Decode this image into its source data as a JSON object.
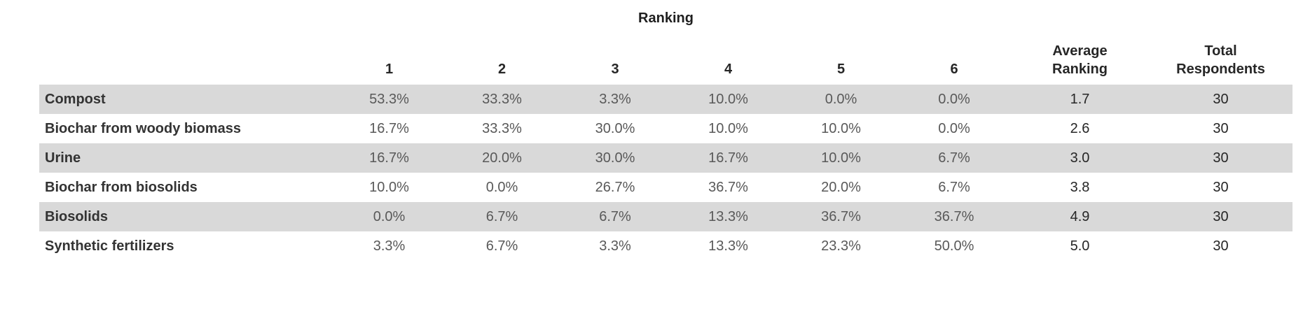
{
  "title": "Ranking",
  "header": {
    "ranks": [
      "1",
      "2",
      "3",
      "4",
      "5",
      "6"
    ],
    "average": "Average\nRanking",
    "total": "Total\nRespondents"
  },
  "rows": [
    {
      "label": "Compost",
      "pcts": [
        "53.3%",
        "33.3%",
        "3.3%",
        "10.0%",
        "0.0%",
        "0.0%"
      ],
      "avg": "1.7",
      "total": "30"
    },
    {
      "label": "Biochar from woody biomass",
      "pcts": [
        "16.7%",
        "33.3%",
        "30.0%",
        "10.0%",
        "10.0%",
        "0.0%"
      ],
      "avg": "2.6",
      "total": "30"
    },
    {
      "label": "Urine",
      "pcts": [
        "16.7%",
        "20.0%",
        "30.0%",
        "16.7%",
        "10.0%",
        "6.7%"
      ],
      "avg": "3.0",
      "total": "30"
    },
    {
      "label": "Biochar from biosolids",
      "pcts": [
        "10.0%",
        "0.0%",
        "26.7%",
        "36.7%",
        "20.0%",
        "6.7%"
      ],
      "avg": "3.8",
      "total": "30"
    },
    {
      "label": "Biosolids",
      "pcts": [
        "0.0%",
        "6.7%",
        "6.7%",
        "13.3%",
        "36.7%",
        "36.7%"
      ],
      "avg": "4.9",
      "total": "30"
    },
    {
      "label": "Synthetic fertilizers",
      "pcts": [
        "3.3%",
        "6.7%",
        "3.3%",
        "13.3%",
        "23.3%",
        "50.0%"
      ],
      "avg": "5.0",
      "total": "30"
    }
  ],
  "colors": {
    "stripe": "#d9d9d9",
    "value_text": "#595959",
    "heading_text": "#262626",
    "label_text": "#333333"
  },
  "chart_data": {
    "type": "table",
    "title": "Ranking",
    "columns": [
      "",
      "1",
      "2",
      "3",
      "4",
      "5",
      "6",
      "Average Ranking",
      "Total Respondents"
    ],
    "rows": [
      [
        "Compost",
        "53.3%",
        "33.3%",
        "3.3%",
        "10.0%",
        "0.0%",
        "0.0%",
        1.7,
        30
      ],
      [
        "Biochar from woody biomass",
        "16.7%",
        "33.3%",
        "30.0%",
        "10.0%",
        "10.0%",
        "0.0%",
        2.6,
        30
      ],
      [
        "Urine",
        "16.7%",
        "20.0%",
        "30.0%",
        "16.7%",
        "10.0%",
        "6.7%",
        3.0,
        30
      ],
      [
        "Biochar from biosolids",
        "10.0%",
        "0.0%",
        "26.7%",
        "36.7%",
        "20.0%",
        "6.7%",
        3.8,
        30
      ],
      [
        "Biosolids",
        "0.0%",
        "6.7%",
        "6.7%",
        "13.3%",
        "36.7%",
        "36.7%",
        4.9,
        30
      ],
      [
        "Synthetic fertilizers",
        "3.3%",
        "6.7%",
        "3.3%",
        "13.3%",
        "23.3%",
        "50.0%",
        5.0,
        30
      ]
    ],
    "notes": "Rows striped light gray starting with first row; percent of respondents assigning each rank 1-6"
  }
}
